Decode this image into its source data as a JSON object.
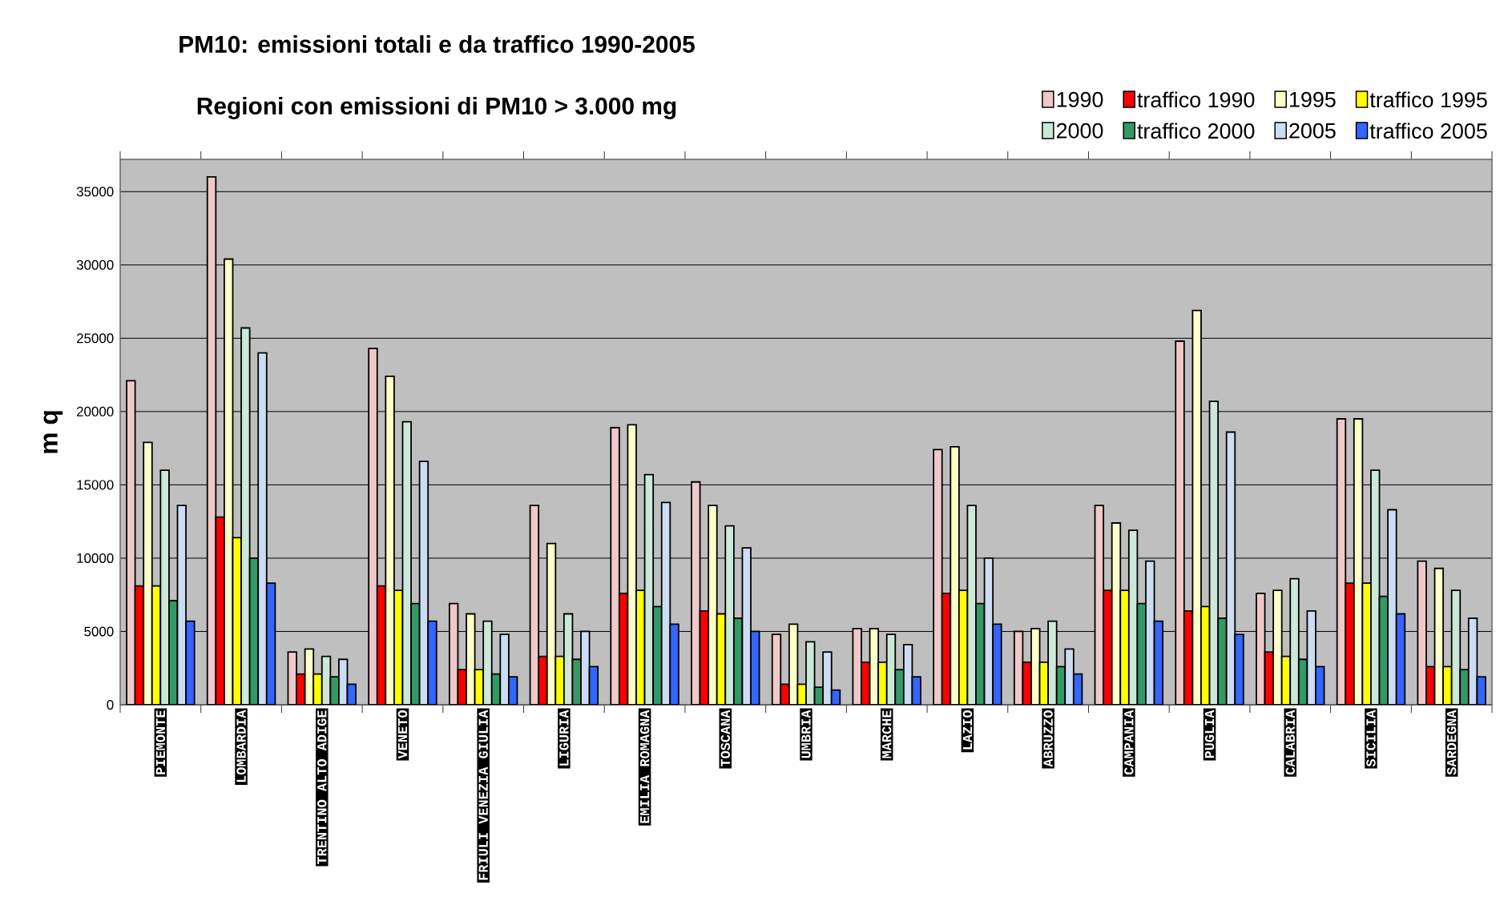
{
  "chart_data": {
    "type": "bar",
    "title": "PM10: emissioni totali  e da traffico 1990-2005",
    "subtitle": "Regioni con emissioni di PM10 > 3.000 mg",
    "ylabel": "m q",
    "categories": [
      "PIEMONTE",
      "LOMBARDIA",
      "TRENTINO ALTO ADIGE",
      "VENETO",
      "FRIULI VENEZIA GIULIA",
      "LIGURIA",
      "EMILIA ROMAGNA",
      "TOSCANA",
      "UMBRIA",
      "MARCHE",
      "LAZIO",
      "ABRUZZO",
      "CAMPANIA",
      "PUGLIA",
      "CALABRIA",
      "SICILIA",
      "SARDEGNA"
    ],
    "series": [
      {
        "name": "1990",
        "color": "#f0c8c8",
        "values": [
          22100,
          36000,
          3600,
          24300,
          6900,
          13600,
          18900,
          15200,
          4800,
          5200,
          17400,
          5000,
          13600,
          24800,
          7600,
          19500,
          9800
        ]
      },
      {
        "name": "traffico 1990",
        "color": "#ff0000",
        "values": [
          8100,
          12800,
          2100,
          8100,
          2400,
          3300,
          7600,
          6400,
          1400,
          2900,
          7600,
          2900,
          7800,
          6400,
          3600,
          8300,
          2600
        ]
      },
      {
        "name": "1995",
        "color": "#ffffc8",
        "values": [
          17900,
          30400,
          3800,
          22400,
          6200,
          11000,
          19100,
          13600,
          5500,
          5200,
          17600,
          5200,
          12400,
          26900,
          7800,
          19500,
          9300
        ]
      },
      {
        "name": "traffico 1995",
        "color": "#ffff00",
        "values": [
          8100,
          11400,
          2100,
          7800,
          2400,
          3300,
          7800,
          6200,
          1400,
          2900,
          7800,
          2900,
          7800,
          6700,
          3300,
          8300,
          2600
        ]
      },
      {
        "name": "2000",
        "color": "#cce8d8",
        "values": [
          16000,
          25700,
          3300,
          19300,
          5700,
          6200,
          15700,
          12200,
          4300,
          4800,
          13600,
          5700,
          11900,
          20700,
          8600,
          16000,
          7800
        ]
      },
      {
        "name": "traffico 2000",
        "color": "#339966",
        "values": [
          7100,
          10000,
          1900,
          6900,
          2100,
          3100,
          6700,
          5900,
          1200,
          2400,
          6900,
          2600,
          6900,
          5900,
          3100,
          7400,
          2400
        ]
      },
      {
        "name": "2005",
        "color": "#ccdcf4",
        "values": [
          13600,
          24000,
          3100,
          16600,
          4800,
          5000,
          13800,
          10700,
          3600,
          4100,
          10000,
          3800,
          9800,
          18600,
          6400,
          13300,
          5900
        ]
      },
      {
        "name": "traffico 2005",
        "color": "#3366ff",
        "values": [
          5700,
          8300,
          1400,
          5700,
          1900,
          2600,
          5500,
          5000,
          1000,
          1900,
          5500,
          2100,
          5700,
          4800,
          2600,
          6200,
          1900
        ]
      }
    ],
    "ylim": [
      0,
      37200
    ],
    "yticks": [
      0,
      5000,
      10000,
      15000,
      20000,
      25000,
      30000,
      35000
    ],
    "grid": "y",
    "legend": "top right"
  }
}
